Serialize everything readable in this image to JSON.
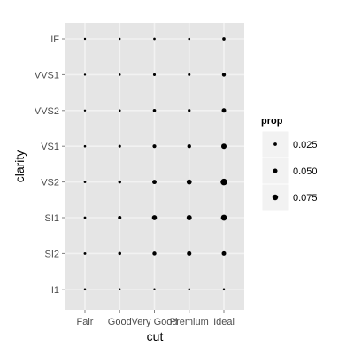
{
  "chart_data": {
    "type": "scatter",
    "xlabel": "cut",
    "ylabel": "clarity",
    "categories_x": [
      "Fair",
      "Good",
      "Very Good",
      "Premium",
      "Ideal"
    ],
    "categories_y": [
      "I1",
      "SI2",
      "SI1",
      "VS2",
      "VS1",
      "VVS2",
      "VVS1",
      "IF"
    ],
    "grid": true,
    "background": "#e5e5e5",
    "gridline_color": "#f2f2f2",
    "point_color": "#000000",
    "legend": {
      "title": "prop",
      "position": "right",
      "entries": [
        {
          "label": "0.025",
          "value": 0.025
        },
        {
          "label": "0.050",
          "value": 0.05
        },
        {
          "label": "0.075",
          "value": 0.075
        }
      ]
    },
    "points": [
      {
        "cut": "Fair",
        "clarity": "I1",
        "prop": 0.004
      },
      {
        "cut": "Fair",
        "clarity": "SI2",
        "prop": 0.009
      },
      {
        "cut": "Fair",
        "clarity": "SI1",
        "prop": 0.007
      },
      {
        "cut": "Fair",
        "clarity": "VS2",
        "prop": 0.005
      },
      {
        "cut": "Fair",
        "clarity": "VS1",
        "prop": 0.003
      },
      {
        "cut": "Fair",
        "clarity": "VVS2",
        "prop": 0.001
      },
      {
        "cut": "Fair",
        "clarity": "VVS1",
        "prop": 0.0003
      },
      {
        "cut": "Fair",
        "clarity": "IF",
        "prop": 0.0002
      },
      {
        "cut": "Good",
        "clarity": "I1",
        "prop": 0.002
      },
      {
        "cut": "Good",
        "clarity": "SI2",
        "prop": 0.02
      },
      {
        "cut": "Good",
        "clarity": "SI1",
        "prop": 0.03
      },
      {
        "cut": "Good",
        "clarity": "VS2",
        "prop": 0.018
      },
      {
        "cut": "Good",
        "clarity": "VS1",
        "prop": 0.012
      },
      {
        "cut": "Good",
        "clarity": "VVS2",
        "prop": 0.005
      },
      {
        "cut": "Good",
        "clarity": "VVS1",
        "prop": 0.003
      },
      {
        "cut": "Good",
        "clarity": "IF",
        "prop": 0.001
      },
      {
        "cut": "Very Good",
        "clarity": "I1",
        "prop": 0.002
      },
      {
        "cut": "Very Good",
        "clarity": "SI2",
        "prop": 0.038
      },
      {
        "cut": "Very Good",
        "clarity": "SI1",
        "prop": 0.06
      },
      {
        "cut": "Very Good",
        "clarity": "VS2",
        "prop": 0.046
      },
      {
        "cut": "Very Good",
        "clarity": "VS1",
        "prop": 0.033
      },
      {
        "cut": "Very Good",
        "clarity": "VVS2",
        "prop": 0.023
      },
      {
        "cut": "Very Good",
        "clarity": "VVS1",
        "prop": 0.014
      },
      {
        "cut": "Very Good",
        "clarity": "IF",
        "prop": 0.005
      },
      {
        "cut": "Premium",
        "clarity": "I1",
        "prop": 0.004
      },
      {
        "cut": "Premium",
        "clarity": "SI2",
        "prop": 0.05
      },
      {
        "cut": "Premium",
        "clarity": "SI1",
        "prop": 0.065
      },
      {
        "cut": "Premium",
        "clarity": "VS2",
        "prop": 0.062
      },
      {
        "cut": "Premium",
        "clarity": "VS1",
        "prop": 0.036
      },
      {
        "cut": "Premium",
        "clarity": "VVS2",
        "prop": 0.016
      },
      {
        "cut": "Premium",
        "clarity": "VVS1",
        "prop": 0.012
      },
      {
        "cut": "Premium",
        "clarity": "IF",
        "prop": 0.004
      },
      {
        "cut": "Ideal",
        "clarity": "I1",
        "prop": 0.003
      },
      {
        "cut": "Ideal",
        "clarity": "SI2",
        "prop": 0.048
      },
      {
        "cut": "Ideal",
        "clarity": "SI1",
        "prop": 0.08
      },
      {
        "cut": "Ideal",
        "clarity": "VS2",
        "prop": 0.095
      },
      {
        "cut": "Ideal",
        "clarity": "VS1",
        "prop": 0.067
      },
      {
        "cut": "Ideal",
        "clarity": "VVS2",
        "prop": 0.048
      },
      {
        "cut": "Ideal",
        "clarity": "VVS1",
        "prop": 0.037
      },
      {
        "cut": "Ideal",
        "clarity": "IF",
        "prop": 0.023
      }
    ]
  }
}
